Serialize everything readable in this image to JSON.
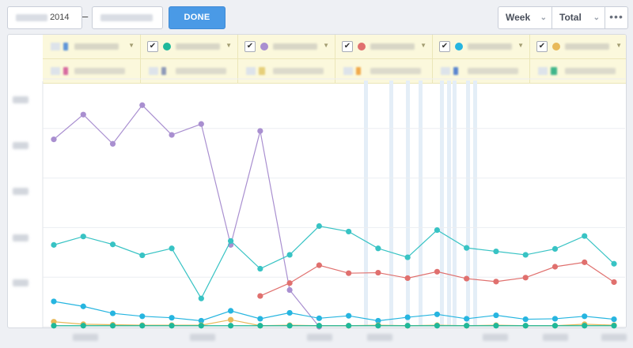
{
  "toolbar": {
    "start_date_suffix": "2014",
    "separator": "–",
    "done_label": "DONE",
    "interval_value": "Week",
    "aggregate_value": "Total",
    "more_label": "•••"
  },
  "legend": {
    "series": [
      {
        "checked": true,
        "color": "#1fb89a"
      },
      {
        "checked": true,
        "color": "#a98fd0"
      },
      {
        "checked": true,
        "color": "#e0706e"
      },
      {
        "checked": true,
        "color": "#26b5e0"
      },
      {
        "checked": true,
        "color": "#e8b95a"
      }
    ]
  },
  "chart_data": {
    "type": "line",
    "x_count": 20,
    "ylim": [
      0,
      5
    ],
    "grid": true,
    "series": [
      {
        "color": "#a98fd0",
        "values": [
          3.78,
          4.28,
          3.69,
          4.47,
          3.87,
          4.09,
          1.65,
          3.95,
          0.74,
          0.0
        ]
      },
      {
        "color": "#38c3c4",
        "values": [
          1.65,
          1.82,
          1.66,
          1.44,
          1.58,
          0.57,
          1.73,
          1.17,
          1.45,
          2.03,
          1.92,
          1.58,
          1.4,
          1.95,
          1.59,
          1.52,
          1.45,
          1.57,
          1.83,
          1.27
        ]
      },
      {
        "color": "#e0706e",
        "values": [
          null,
          null,
          null,
          null,
          null,
          null,
          null,
          0.62,
          0.88,
          1.24,
          1.08,
          1.09,
          0.98,
          1.11,
          0.97,
          0.91,
          0.99,
          1.21,
          1.3,
          0.9
        ]
      },
      {
        "color": "#26b5e0",
        "values": [
          0.51,
          0.41,
          0.27,
          0.21,
          0.18,
          0.12,
          0.32,
          0.16,
          0.28,
          0.17,
          0.22,
          0.12,
          0.19,
          0.25,
          0.16,
          0.23,
          0.15,
          0.16,
          0.21,
          0.15
        ]
      },
      {
        "color": "#e8b95a",
        "values": [
          0.1,
          0.05,
          0.04,
          0.03,
          0.03,
          0.03,
          0.14,
          0.02,
          0.03,
          0.02,
          0.02,
          0.03,
          0.02,
          0.03,
          0.02,
          0.03,
          0.02,
          0.02,
          0.05,
          0.03
        ]
      },
      {
        "color": "#1fb89a",
        "values": [
          0.02,
          0.02,
          0.02,
          0.02,
          0.02,
          0.02,
          0.02,
          0.02,
          0.02,
          0.02,
          0.02,
          0.02,
          0.02,
          0.02,
          0.02,
          0.02,
          0.02,
          0.02,
          0.02,
          0.02
        ]
      }
    ]
  }
}
